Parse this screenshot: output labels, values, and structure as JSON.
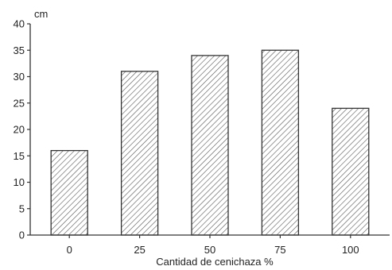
{
  "chart_data": {
    "type": "bar",
    "categories": [
      "0",
      "25",
      "50",
      "75",
      "100"
    ],
    "values": [
      16,
      31,
      34,
      35,
      24
    ],
    "xlabel": "Cantidad de cenichaza %",
    "ylabel": "cm",
    "ylim": [
      0,
      40
    ],
    "yticks": [
      "0",
      "5",
      "10",
      "15",
      "20",
      "25",
      "30",
      "35",
      "40"
    ],
    "grid": false,
    "bar_fill": "hatched",
    "colors": {
      "bar_stroke": "#333333",
      "hatch": "#555555",
      "axis": "#333333"
    }
  }
}
